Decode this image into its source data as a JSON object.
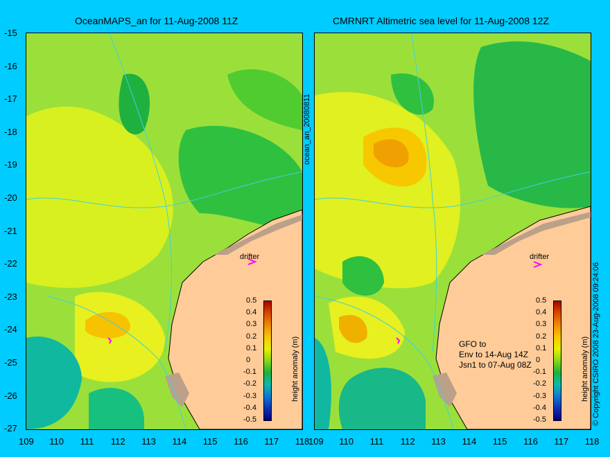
{
  "left_panel": {
    "title": "OceanMAPS_an for 11-Aug-2008 11Z",
    "side_label": "ocean_an_20080811",
    "drifter_label": "drifter"
  },
  "right_panel": {
    "title": "CMRNRT Altimetric sea level  for 11-Aug-2008 12Z",
    "drifter_label": "drifter",
    "annotation": [
      "GFO to",
      "Env to 14-Aug 14Z",
      "Jsn1 to 07-Aug 08Z"
    ],
    "copyright": "© Copyright CSIRO 2008   23-Aug-2008 09:24:06"
  },
  "lat_ticks": [
    "-15",
    "-16",
    "-17",
    "-18",
    "-19",
    "-20",
    "-21",
    "-22",
    "-23",
    "-24",
    "-25",
    "-26",
    "-27"
  ],
  "lon_ticks": [
    "109",
    "110",
    "111",
    "112",
    "113",
    "114",
    "115",
    "116",
    "117",
    "118"
  ],
  "colorbar": {
    "label": "height anomaly (m)",
    "ticks": [
      "0.5",
      "0.4",
      "0.3",
      "0.2",
      "0.1",
      "0",
      "-0.1",
      "-0.2",
      "-0.3",
      "-0.4",
      "-0.5"
    ],
    "colors": [
      "#a80000",
      "#f08a00",
      "#f7c800",
      "#e8f000",
      "#88d818",
      "#20b040",
      "#10b8a8",
      "#1078d0",
      "#000080"
    ]
  },
  "map_colors": {
    "land": "#ffcc99",
    "reef": "#bba08a",
    "coast": "#000000",
    "contour": "#40d0e0",
    "drifter": "#ff00ff"
  }
}
